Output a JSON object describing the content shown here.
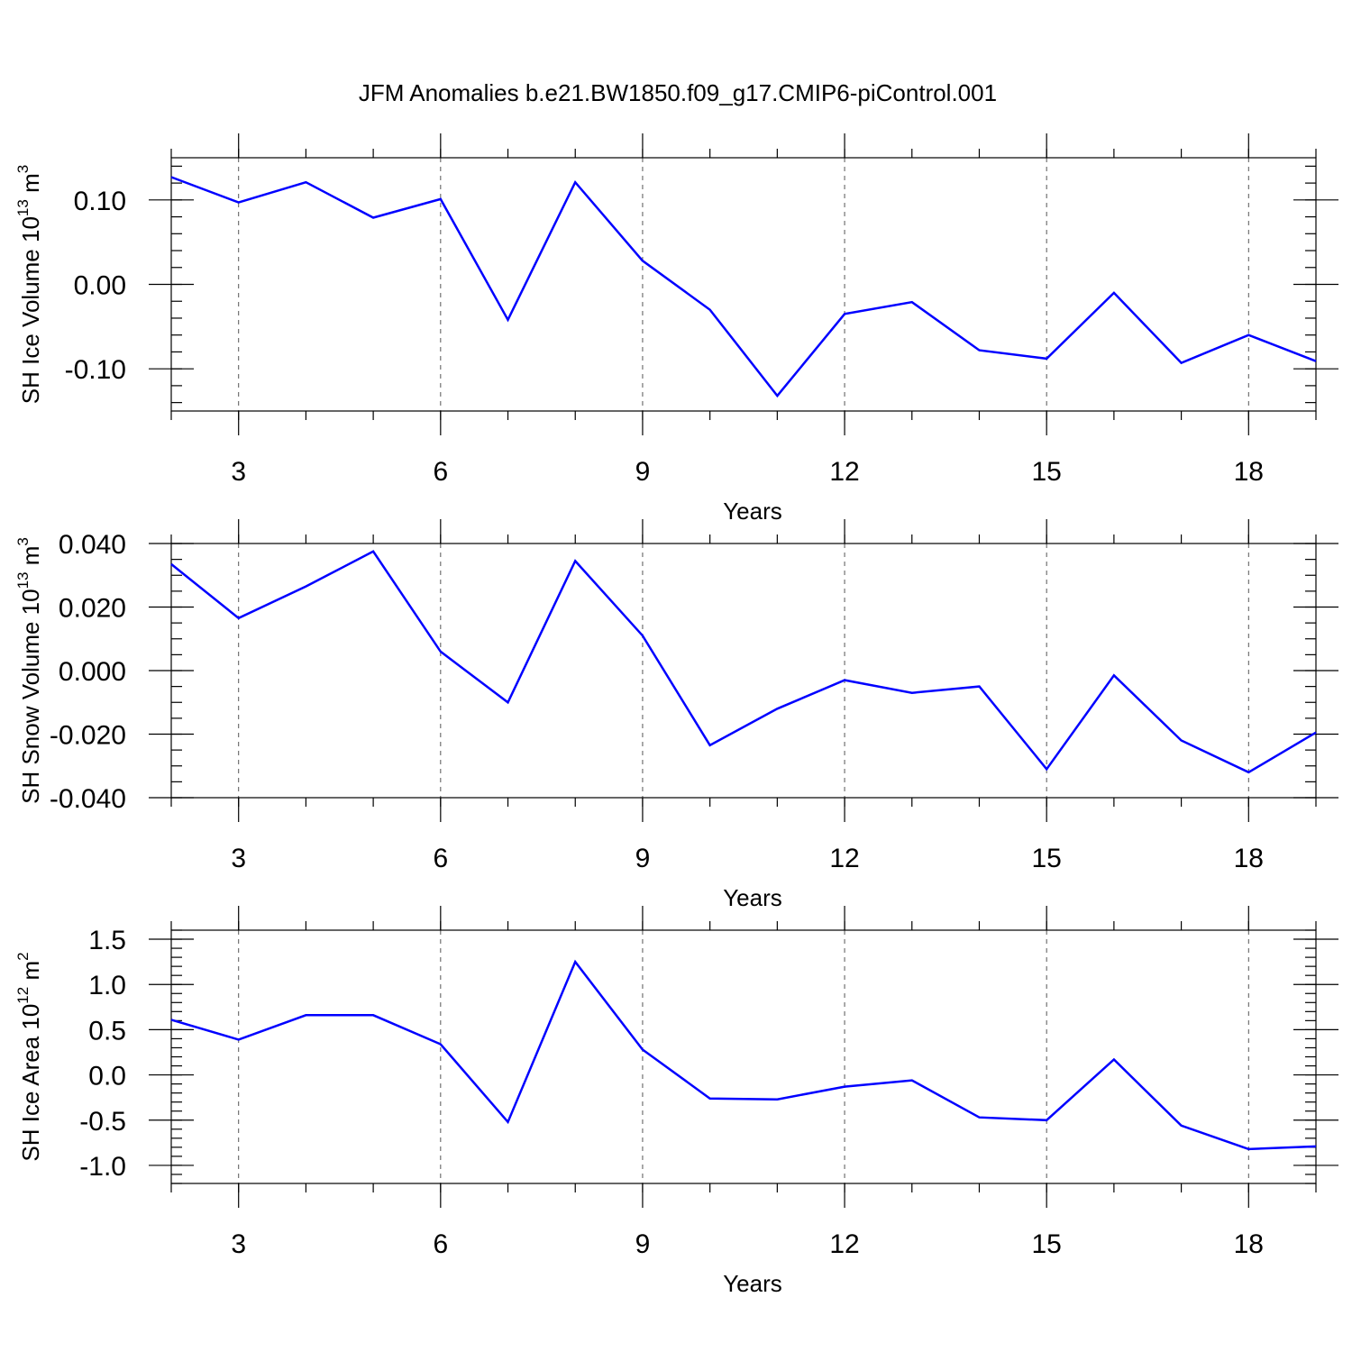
{
  "figure": {
    "title": "JFM Anomalies b.e21.BW1850.f09_g17.CMIP6-piControl.001"
  },
  "colors": {
    "series": "#0000ff",
    "grid": "#555555",
    "axis": "#000000"
  },
  "chart_data": [
    {
      "type": "line",
      "ylabel": {
        "text": "SH Ice Volume 10",
        "sup": "13",
        "unit": " m",
        "unit_sup": "3"
      },
      "xlabel": "Years",
      "x": [
        2,
        3,
        4,
        5,
        6,
        7,
        8,
        9,
        10,
        11,
        12,
        13,
        14,
        15,
        16,
        17,
        18,
        19
      ],
      "series": [
        {
          "values": [
            0.127,
            0.097,
            0.121,
            0.079,
            0.101,
            -0.042,
            0.121,
            0.028,
            -0.03,
            -0.132,
            -0.035,
            -0.021,
            -0.078,
            -0.088,
            -0.01,
            -0.093,
            -0.06,
            -0.091
          ]
        }
      ],
      "xlim": [
        2,
        19
      ],
      "ylim": [
        -0.15,
        0.15
      ],
      "xticks": [
        3,
        6,
        9,
        12,
        15,
        18
      ],
      "xtick_labels": [
        "3",
        "6",
        "9",
        "12",
        "15",
        "18"
      ],
      "yticks": [
        -0.1,
        0.0,
        0.1
      ],
      "ytick_labels": [
        "-0.10",
        "0.00",
        "0.10"
      ],
      "yminor_step": 0.02,
      "grid": "x dashed"
    },
    {
      "type": "line",
      "ylabel": {
        "text": "SH Snow Volume 10",
        "sup": "13",
        "unit": " m",
        "unit_sup": "3"
      },
      "xlabel": "Years",
      "x": [
        2,
        3,
        4,
        5,
        6,
        7,
        8,
        9,
        10,
        11,
        12,
        13,
        14,
        15,
        16,
        17,
        18,
        19
      ],
      "series": [
        {
          "values": [
            0.0335,
            0.0165,
            0.0265,
            0.0375,
            0.006,
            -0.01,
            0.0345,
            0.011,
            -0.0235,
            -0.012,
            -0.003,
            -0.007,
            -0.005,
            -0.031,
            -0.0015,
            -0.022,
            -0.032,
            -0.0195
          ]
        }
      ],
      "xlim": [
        2,
        19
      ],
      "ylim": [
        -0.04,
        0.04
      ],
      "xticks": [
        3,
        6,
        9,
        12,
        15,
        18
      ],
      "xtick_labels": [
        "3",
        "6",
        "9",
        "12",
        "15",
        "18"
      ],
      "yticks": [
        -0.04,
        -0.02,
        0.0,
        0.02,
        0.04
      ],
      "ytick_labels": [
        "-0.040",
        "-0.020",
        "0.000",
        "0.020",
        "0.040"
      ],
      "yminor_step": 0.005,
      "grid": "x dashed"
    },
    {
      "type": "line",
      "ylabel": {
        "text": "SH Ice Area 10",
        "sup": "12",
        "unit": " m",
        "unit_sup": "2"
      },
      "xlabel": "Years",
      "x": [
        2,
        3,
        4,
        5,
        6,
        7,
        8,
        9,
        10,
        11,
        12,
        13,
        14,
        15,
        16,
        17,
        18,
        19
      ],
      "series": [
        {
          "values": [
            0.61,
            0.39,
            0.66,
            0.66,
            0.34,
            -0.52,
            1.25,
            0.28,
            -0.26,
            -0.27,
            -0.13,
            -0.06,
            -0.47,
            -0.5,
            0.17,
            -0.56,
            -0.82,
            -0.79
          ]
        }
      ],
      "xlim": [
        2,
        19
      ],
      "ylim": [
        -1.2,
        1.6
      ],
      "xticks": [
        3,
        6,
        9,
        12,
        15,
        18
      ],
      "xtick_labels": [
        "3",
        "6",
        "9",
        "12",
        "15",
        "18"
      ],
      "yticks": [
        -1.0,
        -0.5,
        0.0,
        0.5,
        1.0,
        1.5
      ],
      "ytick_labels": [
        "-1.0",
        "-0.5",
        "0.0",
        "0.5",
        "1.0",
        "1.5"
      ],
      "yminor_step": 0.1,
      "grid": "x dashed"
    }
  ]
}
